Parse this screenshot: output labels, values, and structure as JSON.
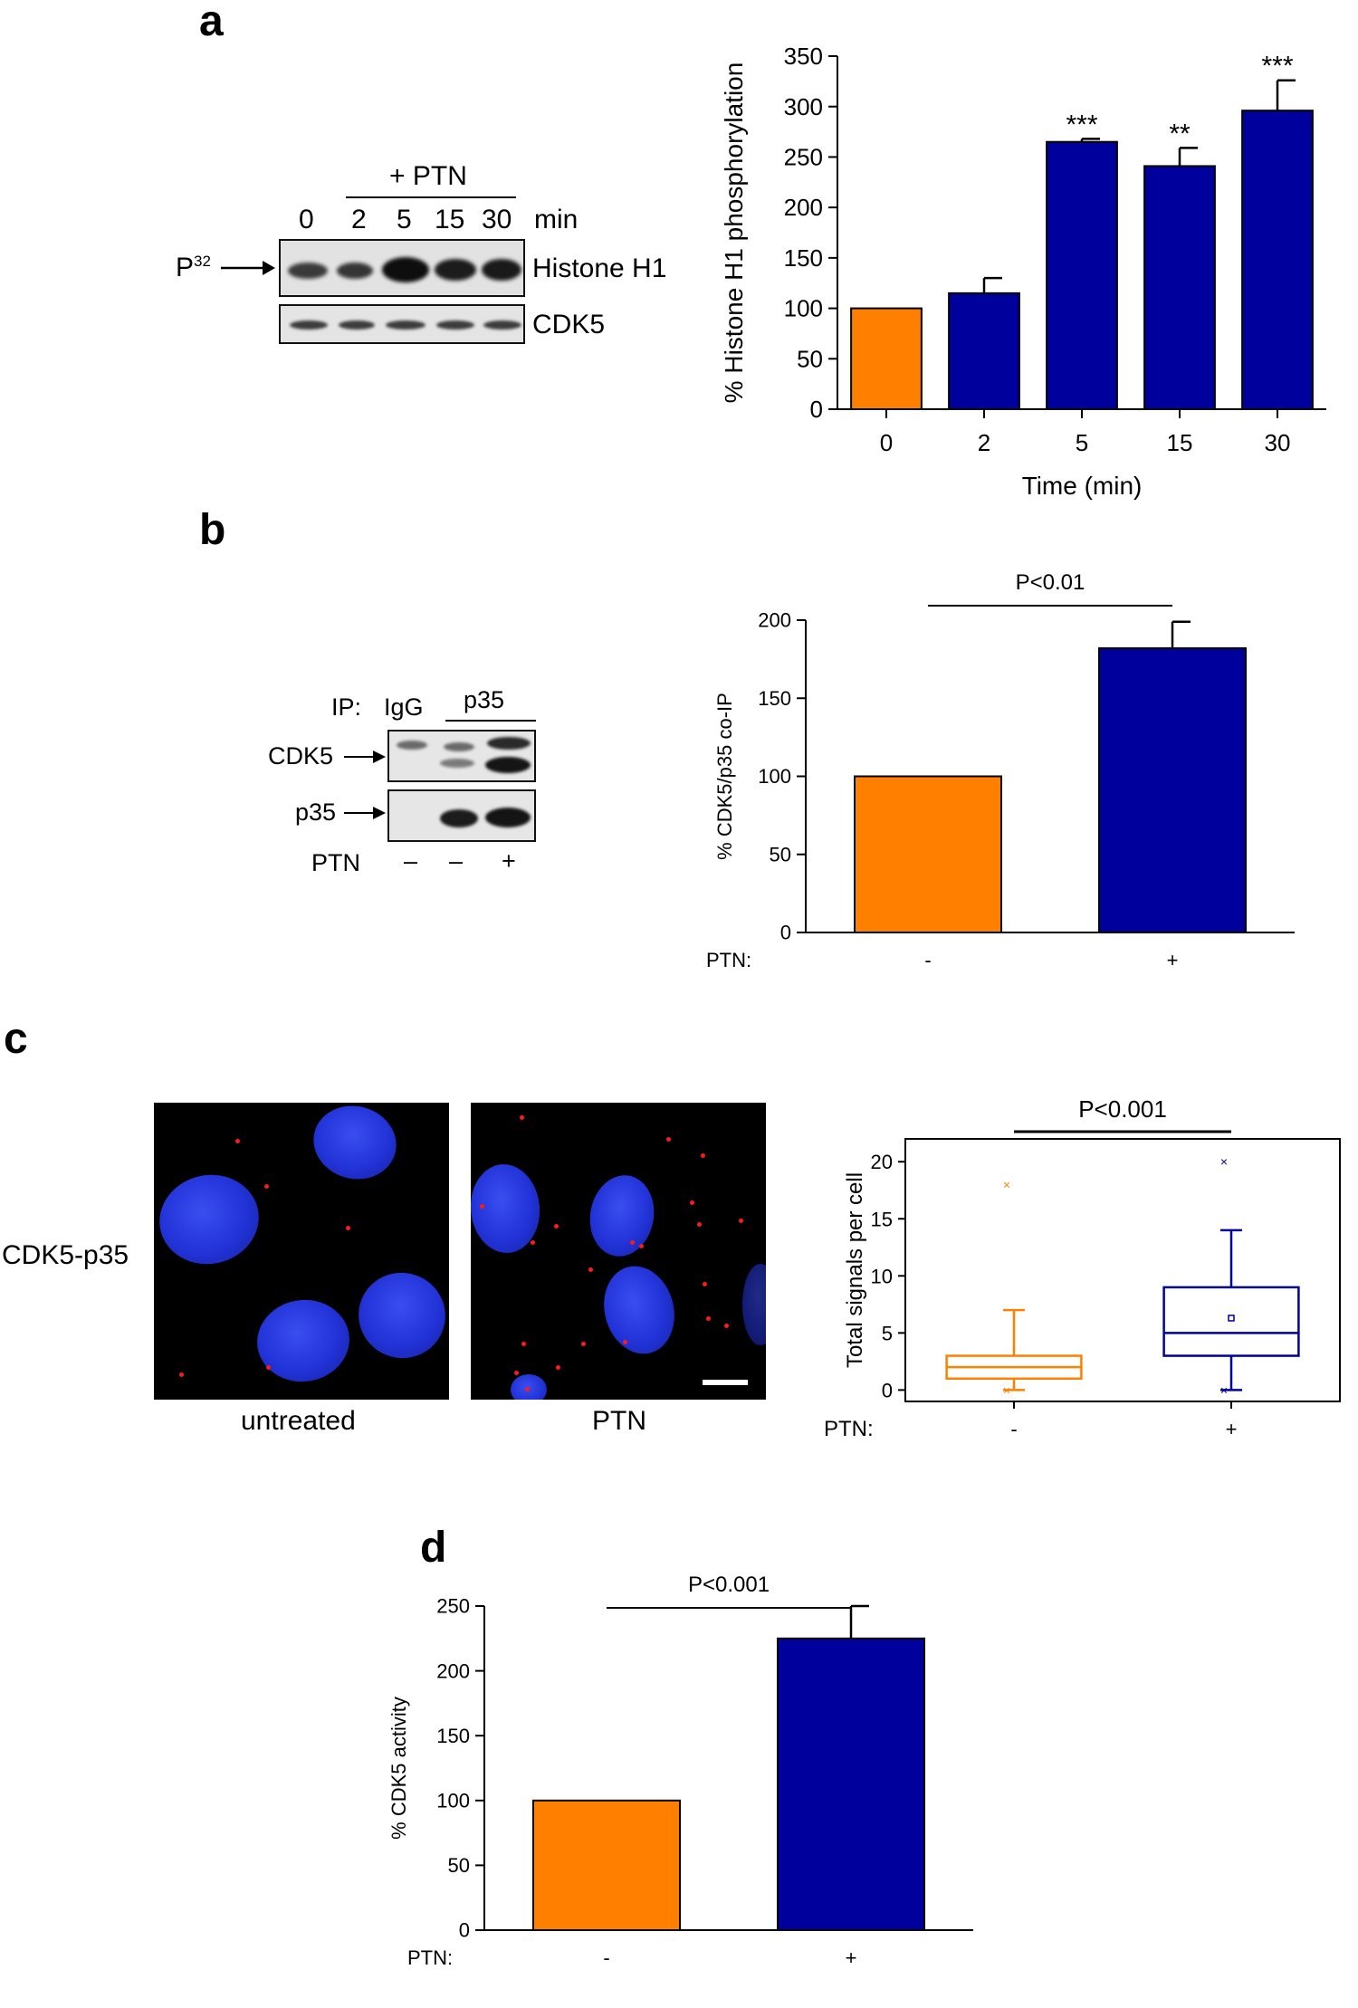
{
  "panels": {
    "a": {
      "letter": "a",
      "blot": {
        "group_label": "+ PTN",
        "lanes": [
          "0",
          "2",
          "5",
          "15",
          "30"
        ],
        "unit": "min",
        "marker": "P",
        "marker_sup": "32",
        "rows": [
          "Histone H1",
          "CDK5"
        ]
      }
    },
    "b": {
      "letter": "b",
      "blot": {
        "ip_label": "IP:",
        "ip_lanes": [
          "IgG",
          "p35"
        ],
        "rows": [
          "CDK5",
          "p35"
        ],
        "treatment_label": "PTN",
        "treatment_values": [
          "–",
          "–",
          "+"
        ]
      }
    },
    "c": {
      "letter": "c",
      "row_label": "CDK5-p35",
      "images": [
        "untreated",
        "PTN"
      ]
    },
    "d": {
      "letter": "d"
    }
  },
  "colors": {
    "orange": "#ff8000",
    "navy": "#00009c",
    "nucleus_blue": "#2233d8",
    "signal_red": "#ff1a1a"
  },
  "chart_data": [
    {
      "id": "a",
      "type": "bar",
      "categories": [
        "0",
        "2",
        "5",
        "15",
        "30"
      ],
      "values": [
        100,
        115,
        265,
        241,
        296
      ],
      "errors": [
        0,
        15,
        3,
        18,
        30
      ],
      "annotations": [
        "",
        "",
        "***",
        "**",
        "***"
      ],
      "colors": [
        "#ff8000",
        "#00009c",
        "#00009c",
        "#00009c",
        "#00009c"
      ],
      "xlabel": "Time (min)",
      "ylabel": "% Histone H1 phosphorylation",
      "ylim": [
        0,
        350
      ],
      "yticks": [
        0,
        50,
        100,
        150,
        200,
        250,
        300,
        350
      ]
    },
    {
      "id": "b",
      "type": "bar",
      "categories": [
        "-",
        "+"
      ],
      "values": [
        100,
        182
      ],
      "errors": [
        0,
        17
      ],
      "colors": [
        "#ff8000",
        "#00009c"
      ],
      "xlabel": "PTN:",
      "ylabel": "% CDK5/p35 co-IP",
      "ylim": [
        0,
        200
      ],
      "yticks": [
        0,
        50,
        100,
        150,
        200
      ],
      "significance": "P<0.01"
    },
    {
      "id": "c",
      "type": "box",
      "categories": [
        "-",
        "+"
      ],
      "boxes": [
        {
          "min": 0,
          "q1": 1,
          "median": 2,
          "q3": 3,
          "whisker_high": 7,
          "mean": null,
          "outliers": [
            18,
            0
          ]
        },
        {
          "min": 0,
          "q1": 3,
          "median": 5,
          "q3": 9,
          "whisker_high": 14,
          "mean": 6.3,
          "outliers": [
            20,
            0
          ]
        }
      ],
      "colors": [
        "#ff8000",
        "#00009c"
      ],
      "xlabel": "PTN:",
      "ylabel": "Total signals per cell",
      "ylim": [
        -1,
        22
      ],
      "yticks": [
        0,
        5,
        10,
        15,
        20
      ],
      "significance": "P<0.001"
    },
    {
      "id": "d",
      "type": "bar",
      "categories": [
        "-",
        "+"
      ],
      "values": [
        100,
        225
      ],
      "errors": [
        0,
        25
      ],
      "colors": [
        "#ff8000",
        "#00009c"
      ],
      "xlabel": "PTN:",
      "ylabel": "% CDK5 activity",
      "ylim": [
        0,
        250
      ],
      "yticks": [
        0,
        50,
        100,
        150,
        200,
        250
      ],
      "significance": "P<0.001"
    }
  ]
}
